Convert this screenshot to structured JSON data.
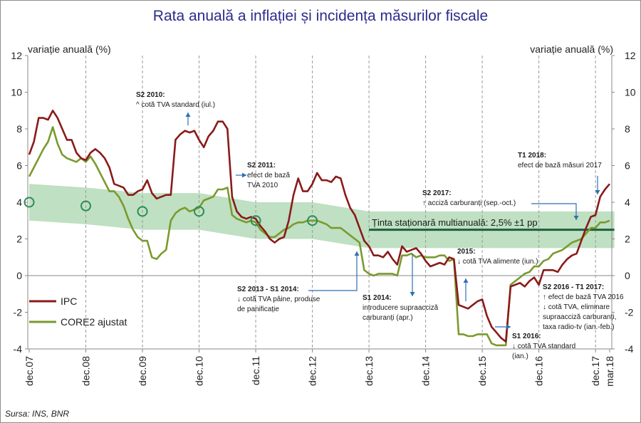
{
  "chart_data": {
    "type": "line",
    "title": "Rata anuală a inflației și incidența măsurilor fiscale",
    "ylabel_left": "variație anuală (%)",
    "ylabel_right": "variație anuală (%)",
    "ylim": [
      -4,
      12
    ],
    "yticks": [
      -4,
      -2,
      0,
      2,
      4,
      6,
      8,
      10,
      12
    ],
    "xlim": [
      0,
      124
    ],
    "x_unit": "months since dec.07",
    "x_ticks": [
      {
        "label": "dec.07",
        "x": 0
      },
      {
        "label": "dec.08",
        "x": 12
      },
      {
        "label": "dec.09",
        "x": 24
      },
      {
        "label": "dec.10",
        "x": 36
      },
      {
        "label": "dec.11",
        "x": 48
      },
      {
        "label": "dec.12",
        "x": 60
      },
      {
        "label": "dec.13",
        "x": 72
      },
      {
        "label": "dec.14",
        "x": 84
      },
      {
        "label": "dec.15",
        "x": 96
      },
      {
        "label": "dec.16",
        "x": 108
      },
      {
        "label": "dec.17",
        "x": 120
      },
      {
        "label": "mar.18",
        "x": 123
      }
    ],
    "series": [
      {
        "name": "IPC",
        "color": "#8b1a1a",
        "points": [
          [
            0,
            6.6
          ],
          [
            1,
            7.3
          ],
          [
            2,
            8.6
          ],
          [
            3,
            8.6
          ],
          [
            4,
            8.5
          ],
          [
            5,
            9.0
          ],
          [
            6,
            8.6
          ],
          [
            7,
            8.0
          ],
          [
            8,
            7.4
          ],
          [
            9,
            7.4
          ],
          [
            10,
            6.7
          ],
          [
            11,
            6.4
          ],
          [
            12,
            6.3
          ],
          [
            13,
            6.7
          ],
          [
            14,
            6.9
          ],
          [
            15,
            6.7
          ],
          [
            16,
            6.4
          ],
          [
            17,
            5.9
          ],
          [
            18,
            5.0
          ],
          [
            19,
            4.9
          ],
          [
            20,
            4.8
          ],
          [
            21,
            4.4
          ],
          [
            22,
            4.4
          ],
          [
            23,
            4.6
          ],
          [
            24,
            4.7
          ],
          [
            25,
            5.2
          ],
          [
            26,
            4.5
          ],
          [
            27,
            4.2
          ],
          [
            28,
            4.3
          ],
          [
            29,
            4.4
          ],
          [
            30,
            4.4
          ],
          [
            31,
            7.4
          ],
          [
            32,
            7.7
          ],
          [
            33,
            7.9
          ],
          [
            34,
            7.8
          ],
          [
            35,
            7.9
          ],
          [
            36,
            7.4
          ],
          [
            37,
            7.0
          ],
          [
            38,
            7.6
          ],
          [
            39,
            7.9
          ],
          [
            40,
            8.4
          ],
          [
            41,
            8.4
          ],
          [
            42,
            8.0
          ],
          [
            43,
            4.3
          ],
          [
            44,
            3.5
          ],
          [
            45,
            3.2
          ],
          [
            46,
            3.1
          ],
          [
            47,
            3.2
          ],
          [
            48,
            3.1
          ],
          [
            49,
            2.7
          ],
          [
            50,
            2.4
          ],
          [
            51,
            2.0
          ],
          [
            52,
            1.8
          ],
          [
            53,
            2.0
          ],
          [
            54,
            2.1
          ],
          [
            55,
            3.0
          ],
          [
            56,
            4.4
          ],
          [
            57,
            5.3
          ],
          [
            58,
            4.6
          ],
          [
            59,
            4.6
          ],
          [
            60,
            5.0
          ],
          [
            61,
            5.6
          ],
          [
            62,
            5.2
          ],
          [
            63,
            5.2
          ],
          [
            64,
            5.1
          ],
          [
            65,
            5.4
          ],
          [
            66,
            5.3
          ],
          [
            67,
            4.4
          ],
          [
            68,
            3.7
          ],
          [
            69,
            3.3
          ],
          [
            70,
            2.6
          ],
          [
            71,
            1.9
          ],
          [
            72,
            1.6
          ],
          [
            73,
            1.1
          ],
          [
            74,
            1.1
          ],
          [
            75,
            1.0
          ],
          [
            76,
            1.3
          ],
          [
            77,
            0.9
          ],
          [
            78,
            0.6
          ],
          [
            79,
            1.6
          ],
          [
            80,
            1.3
          ],
          [
            81,
            1.4
          ],
          [
            82,
            1.5
          ],
          [
            83,
            1.2
          ],
          [
            84,
            0.8
          ],
          [
            85,
            0.5
          ],
          [
            86,
            0.6
          ],
          [
            87,
            0.7
          ],
          [
            88,
            0.6
          ],
          [
            89,
            1.0
          ],
          [
            90,
            0.9
          ],
          [
            91,
            -1.6
          ],
          [
            92,
            -1.7
          ],
          [
            93,
            -1.8
          ],
          [
            94,
            -1.6
          ],
          [
            95,
            -1.4
          ],
          [
            96,
            -1.3
          ],
          [
            97,
            -2.2
          ],
          [
            98,
            -2.8
          ],
          [
            99,
            -3.1
          ],
          [
            100,
            -3.4
          ],
          [
            101,
            -3.6
          ],
          [
            102,
            -0.6
          ],
          [
            103,
            -0.5
          ],
          [
            104,
            -0.4
          ],
          [
            105,
            -0.6
          ],
          [
            106,
            -0.3
          ],
          [
            107,
            -0.1
          ],
          [
            108,
            -0.5
          ],
          [
            109,
            0.3
          ],
          [
            110,
            0.3
          ],
          [
            111,
            0.3
          ],
          [
            112,
            0.2
          ],
          [
            113,
            0.6
          ],
          [
            114,
            0.9
          ],
          [
            115,
            1.1
          ],
          [
            116,
            1.2
          ],
          [
            117,
            1.9
          ],
          [
            118,
            2.6
          ],
          [
            119,
            3.2
          ],
          [
            120,
            3.3
          ],
          [
            121,
            4.3
          ],
          [
            122,
            4.7
          ],
          [
            123,
            5.0
          ]
        ]
      },
      {
        "name": "CORE2 ajustat",
        "color": "#7a9a2e",
        "points": [
          [
            0,
            5.4
          ],
          [
            1,
            5.9
          ],
          [
            2,
            6.4
          ],
          [
            3,
            6.9
          ],
          [
            4,
            7.3
          ],
          [
            5,
            8.1
          ],
          [
            6,
            7.2
          ],
          [
            7,
            6.6
          ],
          [
            8,
            6.4
          ],
          [
            9,
            6.3
          ],
          [
            10,
            6.2
          ],
          [
            11,
            6.4
          ],
          [
            12,
            6.2
          ],
          [
            13,
            6.5
          ],
          [
            14,
            6.1
          ],
          [
            15,
            5.6
          ],
          [
            16,
            5.1
          ],
          [
            17,
            4.6
          ],
          [
            18,
            4.6
          ],
          [
            19,
            4.3
          ],
          [
            20,
            3.8
          ],
          [
            21,
            3.1
          ],
          [
            22,
            2.5
          ],
          [
            23,
            2.1
          ],
          [
            24,
            1.9
          ],
          [
            25,
            1.9
          ],
          [
            26,
            1.0
          ],
          [
            27,
            0.9
          ],
          [
            28,
            1.2
          ],
          [
            29,
            1.4
          ],
          [
            30,
            3.0
          ],
          [
            31,
            3.4
          ],
          [
            32,
            3.6
          ],
          [
            33,
            3.7
          ],
          [
            34,
            3.5
          ],
          [
            35,
            3.6
          ],
          [
            36,
            3.7
          ],
          [
            37,
            4.1
          ],
          [
            38,
            4.2
          ],
          [
            39,
            4.3
          ],
          [
            40,
            4.7
          ],
          [
            41,
            4.7
          ],
          [
            42,
            4.8
          ],
          [
            43,
            3.3
          ],
          [
            44,
            3.1
          ],
          [
            45,
            3.0
          ],
          [
            46,
            2.9
          ],
          [
            47,
            3.0
          ],
          [
            48,
            2.9
          ],
          [
            49,
            2.5
          ],
          [
            50,
            2.3
          ],
          [
            51,
            2.1
          ],
          [
            52,
            2.1
          ],
          [
            53,
            2.3
          ],
          [
            54,
            2.5
          ],
          [
            55,
            2.6
          ],
          [
            56,
            2.8
          ],
          [
            57,
            2.9
          ],
          [
            58,
            2.9
          ],
          [
            59,
            3.0
          ],
          [
            60,
            3.0
          ],
          [
            61,
            3.0
          ],
          [
            62,
            2.9
          ],
          [
            63,
            2.8
          ],
          [
            64,
            2.6
          ],
          [
            65,
            2.6
          ],
          [
            66,
            2.6
          ],
          [
            67,
            2.4
          ],
          [
            68,
            2.2
          ],
          [
            69,
            2.0
          ],
          [
            70,
            1.8
          ],
          [
            71,
            0.3
          ],
          [
            72,
            0.1
          ],
          [
            73,
            0.0
          ],
          [
            74,
            0.1
          ],
          [
            75,
            0.1
          ],
          [
            76,
            0.1
          ],
          [
            77,
            0.1
          ],
          [
            78,
            0.0
          ],
          [
            79,
            1.1
          ],
          [
            80,
            1.1
          ],
          [
            81,
            1.2
          ],
          [
            82,
            1.0
          ],
          [
            83,
            1.1
          ],
          [
            84,
            1.0
          ],
          [
            85,
            1.0
          ],
          [
            86,
            1.0
          ],
          [
            87,
            1.1
          ],
          [
            88,
            1.1
          ],
          [
            89,
            0.8
          ],
          [
            90,
            0.9
          ],
          [
            91,
            -3.2
          ],
          [
            92,
            -3.2
          ],
          [
            93,
            -3.3
          ],
          [
            94,
            -3.3
          ],
          [
            95,
            -3.2
          ],
          [
            96,
            -3.2
          ],
          [
            97,
            -3.2
          ],
          [
            98,
            -3.7
          ],
          [
            99,
            -3.8
          ],
          [
            100,
            -3.8
          ],
          [
            101,
            -3.8
          ],
          [
            102,
            -0.5
          ],
          [
            103,
            -0.3
          ],
          [
            104,
            -0.1
          ],
          [
            105,
            0.1
          ],
          [
            106,
            0.2
          ],
          [
            107,
            0.5
          ],
          [
            108,
            0.5
          ],
          [
            109,
            0.8
          ],
          [
            110,
            0.9
          ],
          [
            111,
            1.2
          ],
          [
            112,
            1.3
          ],
          [
            113,
            1.4
          ],
          [
            114,
            1.6
          ],
          [
            115,
            1.8
          ],
          [
            116,
            1.9
          ],
          [
            117,
            2.0
          ],
          [
            118,
            2.3
          ],
          [
            119,
            2.6
          ],
          [
            120,
            2.6
          ],
          [
            121,
            2.9
          ],
          [
            122,
            2.9
          ],
          [
            123,
            3.0
          ]
        ]
      }
    ],
    "target_points": [
      {
        "x": 0,
        "y": 4.0
      },
      {
        "x": 12,
        "y": 3.8
      },
      {
        "x": 24,
        "y": 3.5
      },
      {
        "x": 36,
        "y": 3.5
      },
      {
        "x": 48,
        "y": 3.0
      },
      {
        "x": 60,
        "y": 3.0
      }
    ],
    "target_band": {
      "upper": [
        [
          0,
          5.0
        ],
        [
          12,
          4.8
        ],
        [
          24,
          4.5
        ],
        [
          36,
          4.5
        ],
        [
          48,
          4.0
        ],
        [
          60,
          4.0
        ],
        [
          72,
          3.5
        ],
        [
          124,
          3.5
        ]
      ],
      "lower": [
        [
          0,
          3.0
        ],
        [
          12,
          2.8
        ],
        [
          24,
          2.5
        ],
        [
          36,
          2.5
        ],
        [
          48,
          2.0
        ],
        [
          60,
          2.0
        ],
        [
          72,
          1.5
        ],
        [
          124,
          1.5
        ]
      ]
    },
    "stationary_target": {
      "value": 2.5,
      "from_x": 72,
      "to_x": 124,
      "label": "Ținta staționară multianuală: 2,5% ±1 pp"
    },
    "annotations": [
      {
        "id": "s2-2010",
        "head": "S2 2010:",
        "lines": [
          "^ cotă TVA standard (iul.)"
        ]
      },
      {
        "id": "s2-2011",
        "head": "S2 2011:",
        "lines": [
          "efect de bază",
          "TVA 2010"
        ]
      },
      {
        "id": "s2-2013",
        "head": "S2 2013 - S1 2014:",
        "lines": [
          "↓ cotă TVA pâine, produse",
          "de panificație"
        ]
      },
      {
        "id": "s1-2014",
        "head": "S1 2014:",
        "lines": [
          "introducere supraacciză",
          "carburanți (apr.)"
        ]
      },
      {
        "id": "y2015",
        "head": "2015:",
        "lines": [
          "↓ cotă TVA alimente (iun.)"
        ]
      },
      {
        "id": "s1-2016",
        "head": "S1 2016:",
        "lines": [
          "↓ cotă TVA standard",
          "(ian.)"
        ]
      },
      {
        "id": "s2-2016",
        "head": "S2 2016 - T1 2017:",
        "lines": [
          "↑ efect de bază TVA 2016",
          "↓ cotă TVA, eliminare",
          "supraacciză carburanți,",
          "taxa radio-tv (ian.-feb.)"
        ]
      },
      {
        "id": "s2-2017",
        "head": "S2 2017:",
        "lines": [
          "↑ acciză carburanți (sep.-oct.)"
        ]
      },
      {
        "id": "t1-2018",
        "head": "T1 2018:",
        "lines": [
          "efect de bază măsuri 2017"
        ]
      }
    ],
    "legend": [
      "IPC",
      "CORE2 ajustat"
    ],
    "legend_position": "bottom-left"
  },
  "colors": {
    "ipc": "#8b1a1a",
    "core": "#7a9a2e",
    "band": "#a9d5ae",
    "target_line": "#1e5e3c",
    "circle": "#2e8b57",
    "arrow": "#2e6fb0",
    "title": "#2b2b8c"
  },
  "source": "Sursa: INS, BNR"
}
